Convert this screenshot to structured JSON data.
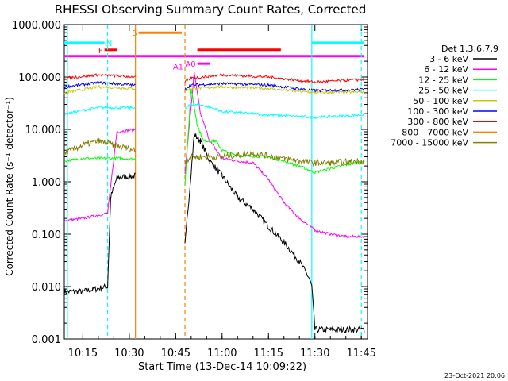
{
  "chart_data": {
    "type": "line",
    "title": "RHESSI Observing Summary Count Rates, Corrected",
    "xlabel": "Start Time (13-Dec-14 10:09:22)",
    "ylabel": "Corrected Count Rate (s⁻¹ detector⁻¹)",
    "y_scale": "log",
    "ylim": [
      0.001,
      1000
    ],
    "xlim": [
      "10:09",
      "11:47"
    ],
    "x_ticks": [
      "10:15",
      "10:30",
      "10:45",
      "11:00",
      "11:15",
      "11:30",
      "11:45"
    ],
    "y_ticks": [
      "0.001",
      "0.010",
      "0.100",
      "1.000",
      "10.000",
      "100.000",
      "1000.000"
    ],
    "legend_title": "Det 1,3,6,7,9",
    "legend_position": "right",
    "footer": "23-Oct-2021 20:06",
    "gaps": [
      [
        "10:32",
        "10:48"
      ]
    ],
    "series": [
      {
        "name": "3 - 6 keV",
        "color": "#000000",
        "x": [
          "10:09",
          "10:15",
          "10:23",
          "10:24",
          "10:26",
          "10:32",
          "10:48",
          "10:51",
          "10:53",
          "10:56",
          "11:00",
          "11:05",
          "11:10",
          "11:15",
          "11:20",
          "11:25",
          "11:28",
          "11:29",
          "11:30",
          "11:35",
          "11:40",
          "11:46"
        ],
        "values": [
          0.008,
          0.008,
          0.01,
          0.5,
          1.2,
          1.3,
          0.06,
          8,
          6,
          2.5,
          1.3,
          0.5,
          0.3,
          0.14,
          0.07,
          0.03,
          0.015,
          0.01,
          0.0015,
          0.0015,
          0.0015,
          0.0015
        ]
      },
      {
        "name": "6 - 12 keV",
        "color": "#ff00ff",
        "x": [
          "10:09",
          "10:15",
          "10:23",
          "10:26",
          "10:32",
          "10:48",
          "10:51",
          "10:53",
          "10:56",
          "11:00",
          "11:05",
          "11:10",
          "11:15",
          "11:20",
          "11:25",
          "11:30",
          "11:35",
          "11:40",
          "11:46"
        ],
        "values": [
          0.18,
          0.2,
          0.25,
          9,
          10,
          1.5,
          120,
          20,
          6,
          2.8,
          2.5,
          2.3,
          1.1,
          0.4,
          0.2,
          0.12,
          0.1,
          0.09,
          0.09
        ]
      },
      {
        "name": "12 - 25 keV",
        "color": "#00ff00",
        "x": [
          "10:09",
          "10:15",
          "10:25",
          "10:27",
          "10:32",
          "10:48",
          "10:50",
          "10:52",
          "10:54",
          "10:57",
          "10:58",
          "11:00",
          "11:05",
          "11:15",
          "11:25",
          "11:30",
          "11:35",
          "11:46"
        ],
        "values": [
          2.5,
          2.8,
          2.8,
          2.8,
          2.7,
          0.9,
          60,
          12,
          6,
          6,
          6,
          4,
          3.2,
          3,
          2,
          1.5,
          1.8,
          2.5
        ]
      },
      {
        "name": "25 - 50 keV",
        "color": "#00ffff",
        "x": [
          "10:09",
          "10:20",
          "10:32",
          "10:48",
          "10:50",
          "10:55",
          "11:00",
          "11:15",
          "11:30",
          "11:46"
        ],
        "values": [
          20,
          26,
          26,
          25,
          30,
          28,
          22,
          19,
          17,
          19
        ]
      },
      {
        "name": "50 - 100 keV",
        "color": "#c8c800",
        "x": [
          "10:09",
          "10:20",
          "10:32",
          "10:48",
          "10:50",
          "11:00",
          "11:15",
          "11:30",
          "11:46"
        ],
        "values": [
          50,
          65,
          60,
          55,
          60,
          65,
          60,
          50,
          52
        ]
      },
      {
        "name": "100 - 300 keV",
        "color": "#0000ff",
        "x": [
          "10:09",
          "10:20",
          "10:32",
          "10:48",
          "10:50",
          "11:00",
          "11:15",
          "11:30",
          "11:46"
        ],
        "values": [
          65,
          78,
          70,
          60,
          70,
          75,
          70,
          55,
          58
        ]
      },
      {
        "name": "300 - 800 keV",
        "color": "#ff0000",
        "x": [
          "10:09",
          "10:20",
          "10:32",
          "10:48",
          "10:50",
          "11:00",
          "11:15",
          "11:30",
          "11:46"
        ],
        "values": [
          95,
          110,
          100,
          80,
          95,
          110,
          100,
          80,
          90
        ]
      },
      {
        "name": "800 - 7000 keV",
        "color": "#ff8000",
        "x": [],
        "values": []
      },
      {
        "name": "7000 - 15000 keV",
        "color": "#808000",
        "x": [
          "10:09",
          "10:15",
          "10:20",
          "10:25",
          "10:32",
          "10:48",
          "10:50",
          "11:00",
          "11:10",
          "11:20",
          "11:25",
          "11:30",
          "11:35",
          "11:46"
        ],
        "values": [
          3.5,
          5,
          6,
          5,
          4,
          2.5,
          3,
          3,
          3.5,
          2.8,
          2.5,
          2.3,
          2.3,
          2.5
        ]
      }
    ],
    "vertical_lines": [
      {
        "x": "10:10",
        "color": "#00ffff",
        "style": "solid"
      },
      {
        "x": "10:23",
        "color": "#00ffff",
        "style": "dashed"
      },
      {
        "x": "10:32",
        "color": "#ff8000",
        "style": "solid"
      },
      {
        "x": "10:48",
        "color": "#ff8000",
        "style": "dashed"
      },
      {
        "x": "11:29",
        "color": "#00ffff",
        "style": "solid"
      },
      {
        "x": "11:45",
        "color": "#00ffff",
        "style": "dashed"
      }
    ],
    "flag_bars": [
      {
        "label": "",
        "color": "#ff00ff",
        "x0": "10:09",
        "x1": "11:46",
        "y": 250
      },
      {
        "label": "",
        "color": "#00ffff",
        "x0": "10:09",
        "x1": "10:22",
        "y": 450
      },
      {
        "label": "",
        "color": "#00ffff",
        "x0": "11:29",
        "x1": "11:46",
        "y": 450
      },
      {
        "label": "F",
        "color": "#ff0000",
        "x0": "10:22",
        "x1": "10:26",
        "y": 330
      },
      {
        "label": "N",
        "color": "#00ffff",
        "x0": "10:25",
        "x1": "10:25",
        "y": 450
      },
      {
        "label": "S",
        "color": "#ff8000",
        "x0": "10:33",
        "x1": "10:47",
        "y": 700
      },
      {
        "label": "",
        "color": "#ff0000",
        "x0": "10:52",
        "x1": "11:19",
        "y": 330
      },
      {
        "label": "A1",
        "color": "#ff00ff",
        "x0": "10:48",
        "x1": "10:48",
        "y": 160
      },
      {
        "label": "A0",
        "color": "#ff00ff",
        "x0": "10:52",
        "x1": "10:56",
        "y": 180
      }
    ]
  }
}
